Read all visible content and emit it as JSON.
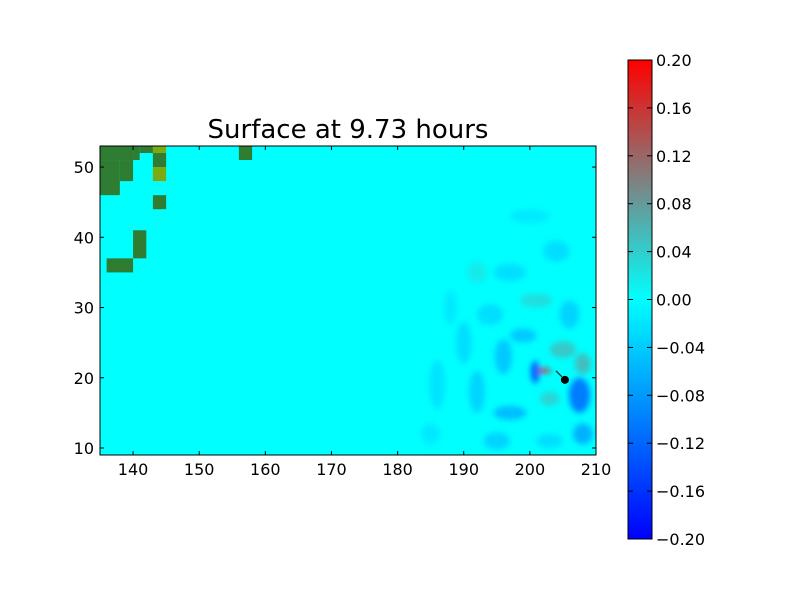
{
  "chart_data": {
    "type": "heatmap",
    "title": "Surface at 9.73 hours",
    "xlabel": "",
    "ylabel": "",
    "xlim": [
      135,
      210
    ],
    "ylim": [
      9,
      53
    ],
    "x_ticks": [
      140,
      150,
      160,
      170,
      180,
      190,
      200,
      210
    ],
    "y_ticks": [
      10,
      20,
      30,
      40,
      50
    ],
    "background_value": 0.0,
    "colorbar": {
      "min": -0.2,
      "max": 0.2,
      "ticks": [
        0.2,
        0.16,
        0.12,
        0.08,
        0.04,
        0.0,
        -0.04,
        -0.08,
        -0.12,
        -0.16,
        -0.2
      ],
      "tick_labels": [
        "0.20",
        "0.16",
        "0.12",
        "0.08",
        "0.04",
        "0.00",
        "−0.04",
        "−0.08",
        "−0.12",
        "−0.16",
        "−0.20"
      ],
      "stops": [
        {
          "value": -0.2,
          "color": "#0000ff"
        },
        {
          "value": 0.0,
          "color": "#00ffff"
        },
        {
          "value": 0.1,
          "color": "#808080"
        },
        {
          "value": 0.2,
          "color": "#ff0000"
        }
      ]
    },
    "land_color": "#2e7d32",
    "land_color_light": "#7caa12",
    "land_cells": [
      {
        "x": 135,
        "y": 51,
        "w": 5,
        "h": 2
      },
      {
        "x": 140,
        "y": 51,
        "w": 1,
        "h": 2
      },
      {
        "x": 141,
        "y": 52,
        "w": 2,
        "h": 1
      },
      {
        "x": 135,
        "y": 46,
        "w": 3,
        "h": 5
      },
      {
        "x": 138,
        "y": 48,
        "w": 2,
        "h": 3
      },
      {
        "x": 143,
        "y": 50,
        "w": 2,
        "h": 2
      },
      {
        "x": 143,
        "y": 44,
        "w": 2,
        "h": 2
      },
      {
        "x": 140,
        "y": 37,
        "w": 2,
        "h": 4
      },
      {
        "x": 136,
        "y": 35,
        "w": 4,
        "h": 2
      },
      {
        "x": 156,
        "y": 51,
        "w": 2,
        "h": 2
      }
    ],
    "land_cells_light": [
      {
        "x": 143,
        "y": 52,
        "w": 2,
        "h": 1
      },
      {
        "x": 143,
        "y": 48,
        "w": 2,
        "h": 2
      }
    ],
    "wave_features": [
      {
        "x": 202,
        "y": 21.0,
        "rx": 1.2,
        "ry": 0.35,
        "value": 0.18
      },
      {
        "x": 200.8,
        "y": 20.8,
        "rx": 0.7,
        "ry": 1.6,
        "value": -0.14
      },
      {
        "x": 207.5,
        "y": 17.5,
        "rx": 1.6,
        "ry": 2.5,
        "value": -0.12
      },
      {
        "x": 208,
        "y": 22,
        "rx": 1.2,
        "ry": 1.5,
        "value": 0.06
      },
      {
        "x": 205,
        "y": 24,
        "rx": 2.0,
        "ry": 1.2,
        "value": 0.05
      },
      {
        "x": 203,
        "y": 17,
        "rx": 1.5,
        "ry": 1.0,
        "value": 0.04
      },
      {
        "x": 199,
        "y": 26,
        "rx": 2.0,
        "ry": 1.0,
        "value": -0.05
      },
      {
        "x": 196,
        "y": 23,
        "rx": 1.3,
        "ry": 2.5,
        "value": -0.05
      },
      {
        "x": 197,
        "y": 15,
        "rx": 2.5,
        "ry": 1.0,
        "value": -0.06
      },
      {
        "x": 192,
        "y": 18,
        "rx": 1.2,
        "ry": 3.0,
        "value": -0.04
      },
      {
        "x": 201,
        "y": 31,
        "rx": 2.5,
        "ry": 1.0,
        "value": 0.03
      },
      {
        "x": 206,
        "y": 29,
        "rx": 1.5,
        "ry": 2.0,
        "value": -0.04
      },
      {
        "x": 194,
        "y": 29,
        "rx": 2.0,
        "ry": 1.5,
        "value": -0.03
      },
      {
        "x": 190,
        "y": 25,
        "rx": 1.2,
        "ry": 3.0,
        "value": -0.03
      },
      {
        "x": 186,
        "y": 19,
        "rx": 1.2,
        "ry": 3.5,
        "value": -0.025
      },
      {
        "x": 195,
        "y": 11,
        "rx": 2.0,
        "ry": 1.2,
        "value": -0.04
      },
      {
        "x": 203,
        "y": 11,
        "rx": 2.0,
        "ry": 1.0,
        "value": -0.03
      },
      {
        "x": 197,
        "y": 35,
        "rx": 2.5,
        "ry": 1.2,
        "value": -0.03
      },
      {
        "x": 204,
        "y": 38,
        "rx": 2.0,
        "ry": 1.5,
        "value": -0.03
      },
      {
        "x": 192,
        "y": 35,
        "rx": 1.5,
        "ry": 1.5,
        "value": 0.02
      },
      {
        "x": 188,
        "y": 30,
        "rx": 1.0,
        "ry": 2.5,
        "value": -0.02
      },
      {
        "x": 208,
        "y": 12,
        "rx": 1.5,
        "ry": 1.5,
        "value": -0.07
      },
      {
        "x": 185,
        "y": 12,
        "rx": 1.5,
        "ry": 1.5,
        "value": -0.02
      },
      {
        "x": 200,
        "y": 43,
        "rx": 3.0,
        "ry": 1.0,
        "value": -0.02
      }
    ],
    "marker": {
      "x": 205.3,
      "y": 19.7
    }
  }
}
